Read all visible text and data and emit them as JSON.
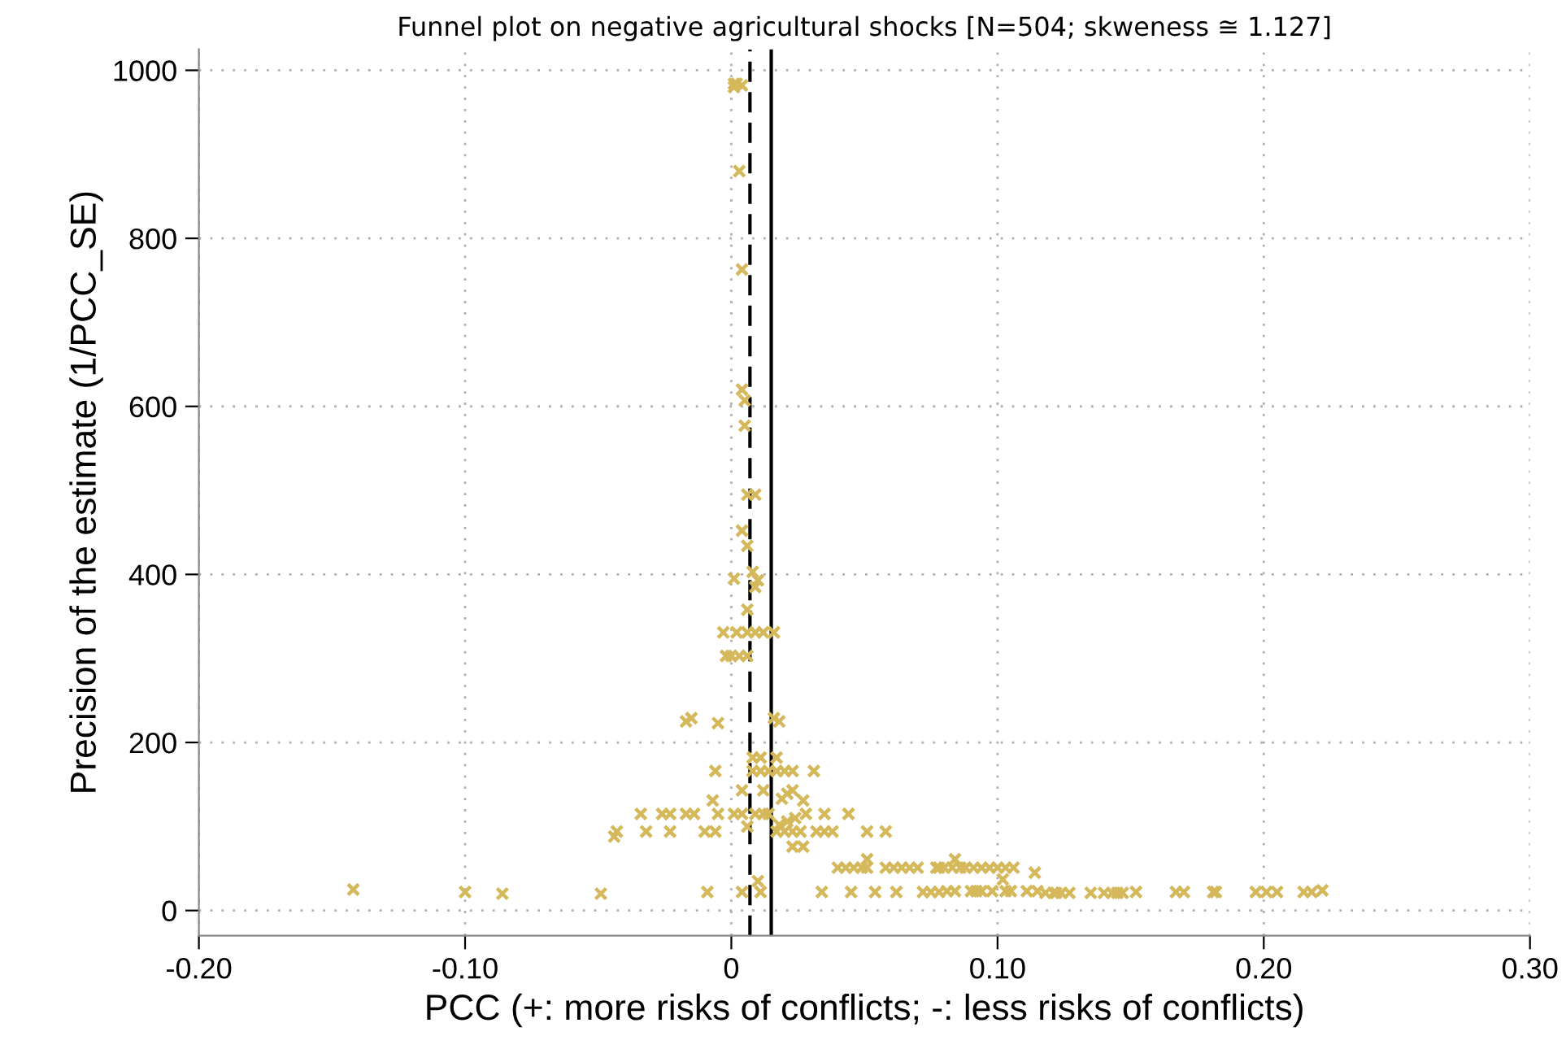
{
  "chart_data": {
    "type": "scatter",
    "title": "Funnel plot on negative agricultural shocks [N=504; skweness ≅ 1.127]",
    "xlabel": "PCC (+: more risks of conflicts; -: less risks of conflicts)",
    "ylabel": "Precision of the estimate (1/PCC_SE)",
    "xlim": [
      -0.2,
      0.3
    ],
    "xticks": [
      {
        "value": -0.2,
        "label": "-0.20"
      },
      {
        "value": -0.1,
        "label": "-0.10"
      },
      {
        "value": 0,
        "label": "0"
      },
      {
        "value": 0.1,
        "label": "0.10"
      },
      {
        "value": 0.2,
        "label": "0.20"
      },
      {
        "value": 0.3,
        "label": "0.30"
      }
    ],
    "ylim": [
      -30,
      1025
    ],
    "yticks": [
      0,
      200,
      400,
      600,
      800,
      1000
    ],
    "grid": true,
    "marker": "cross",
    "ref_lines": [
      {
        "axis": "x",
        "value": 0.007,
        "line_style": "dashed",
        "color": "#000000"
      },
      {
        "axis": "x",
        "value": 0.015,
        "line_style": "solid",
        "color": "#000000"
      }
    ],
    "series": [
      {
        "color": "#d4b85a",
        "x": [
          0.001,
          0.002,
          0.004,
          0.001,
          0.003,
          0.004,
          0.004,
          0.005,
          0.005,
          0.006,
          0.009,
          0.004,
          0.006,
          0.001,
          0.008,
          0.01,
          0.009,
          0.006,
          -0.003,
          0.002,
          0.006,
          0.009,
          0.012,
          0.016,
          -0.002,
          0.0,
          0.003,
          0.006,
          -0.015,
          0.016,
          -0.017,
          0.018,
          -0.005,
          0.008,
          0.011,
          0.017,
          -0.006,
          0.008,
          0.011,
          0.014,
          0.017,
          0.02,
          0.023,
          0.031,
          0.004,
          0.012,
          0.021,
          0.023,
          -0.007,
          0.019,
          0.027,
          -0.034,
          -0.026,
          -0.023,
          -0.017,
          -0.014,
          -0.005,
          0.001,
          0.004,
          0.009,
          0.012,
          0.014,
          0.028,
          0.035,
          0.044,
          -0.043,
          -0.032,
          -0.023,
          -0.01,
          -0.006,
          0.017,
          0.02,
          0.023,
          0.026,
          0.032,
          0.035,
          0.038,
          0.051,
          0.058,
          0.006,
          0.018,
          0.021,
          0.024,
          -0.044,
          0.023,
          0.027,
          0.04,
          0.043,
          0.046,
          0.049,
          0.051,
          0.058,
          0.061,
          0.064,
          0.067,
          0.07,
          0.078,
          0.077,
          0.08,
          0.083,
          0.086,
          0.088,
          0.091,
          0.094,
          0.097,
          0.1,
          0.103,
          0.106,
          0.051,
          0.084,
          0.114,
          0.102,
          0.01,
          -0.009,
          0.004,
          0.011,
          0.034,
          0.045,
          0.054,
          0.062,
          0.072,
          0.075,
          0.078,
          0.081,
          0.084,
          0.09,
          0.092,
          0.094,
          0.098,
          0.103,
          0.105,
          0.111,
          0.115,
          0.118,
          0.121,
          0.122,
          0.124,
          0.127,
          0.135,
          0.14,
          0.143,
          0.145,
          0.147,
          0.152,
          0.167,
          0.17,
          0.181,
          0.182,
          0.197,
          0.201,
          0.205,
          0.215,
          0.218,
          0.222,
          -0.142,
          -0.1,
          -0.086,
          -0.049
        ],
        "values": [
          984,
          984,
          982,
          980,
          880,
          763,
          620,
          607,
          577,
          495,
          495,
          452,
          434,
          395,
          403,
          393,
          385,
          358,
          331,
          331,
          331,
          331,
          331,
          331,
          303,
          303,
          303,
          303,
          229,
          229,
          225,
          225,
          223,
          182,
          182,
          182,
          166,
          166,
          166,
          166,
          166,
          166,
          166,
          166,
          143,
          143,
          139,
          143,
          131,
          133,
          131,
          115,
          115,
          115,
          115,
          115,
          115,
          115,
          115,
          115,
          115,
          115,
          115,
          115,
          115,
          94,
          94,
          94,
          94,
          94,
          94,
          94,
          94,
          94,
          94,
          94,
          94,
          94,
          94,
          100,
          102,
          106,
          110,
          88,
          76,
          76,
          51,
          51,
          51,
          51,
          51,
          51,
          51,
          51,
          51,
          51,
          51,
          51,
          51,
          51,
          51,
          51,
          51,
          51,
          51,
          51,
          51,
          51,
          61,
          61,
          45,
          37,
          35,
          22,
          22,
          22,
          22,
          22,
          22,
          22,
          22,
          22,
          22,
          23,
          23,
          23,
          23,
          23,
          23,
          23,
          23,
          23,
          23,
          21,
          21,
          21,
          21,
          21,
          21,
          21,
          21,
          21,
          21,
          22,
          22,
          22,
          22,
          22,
          22,
          22,
          22,
          22,
          22,
          24,
          25,
          22,
          20,
          20
        ]
      }
    ]
  }
}
